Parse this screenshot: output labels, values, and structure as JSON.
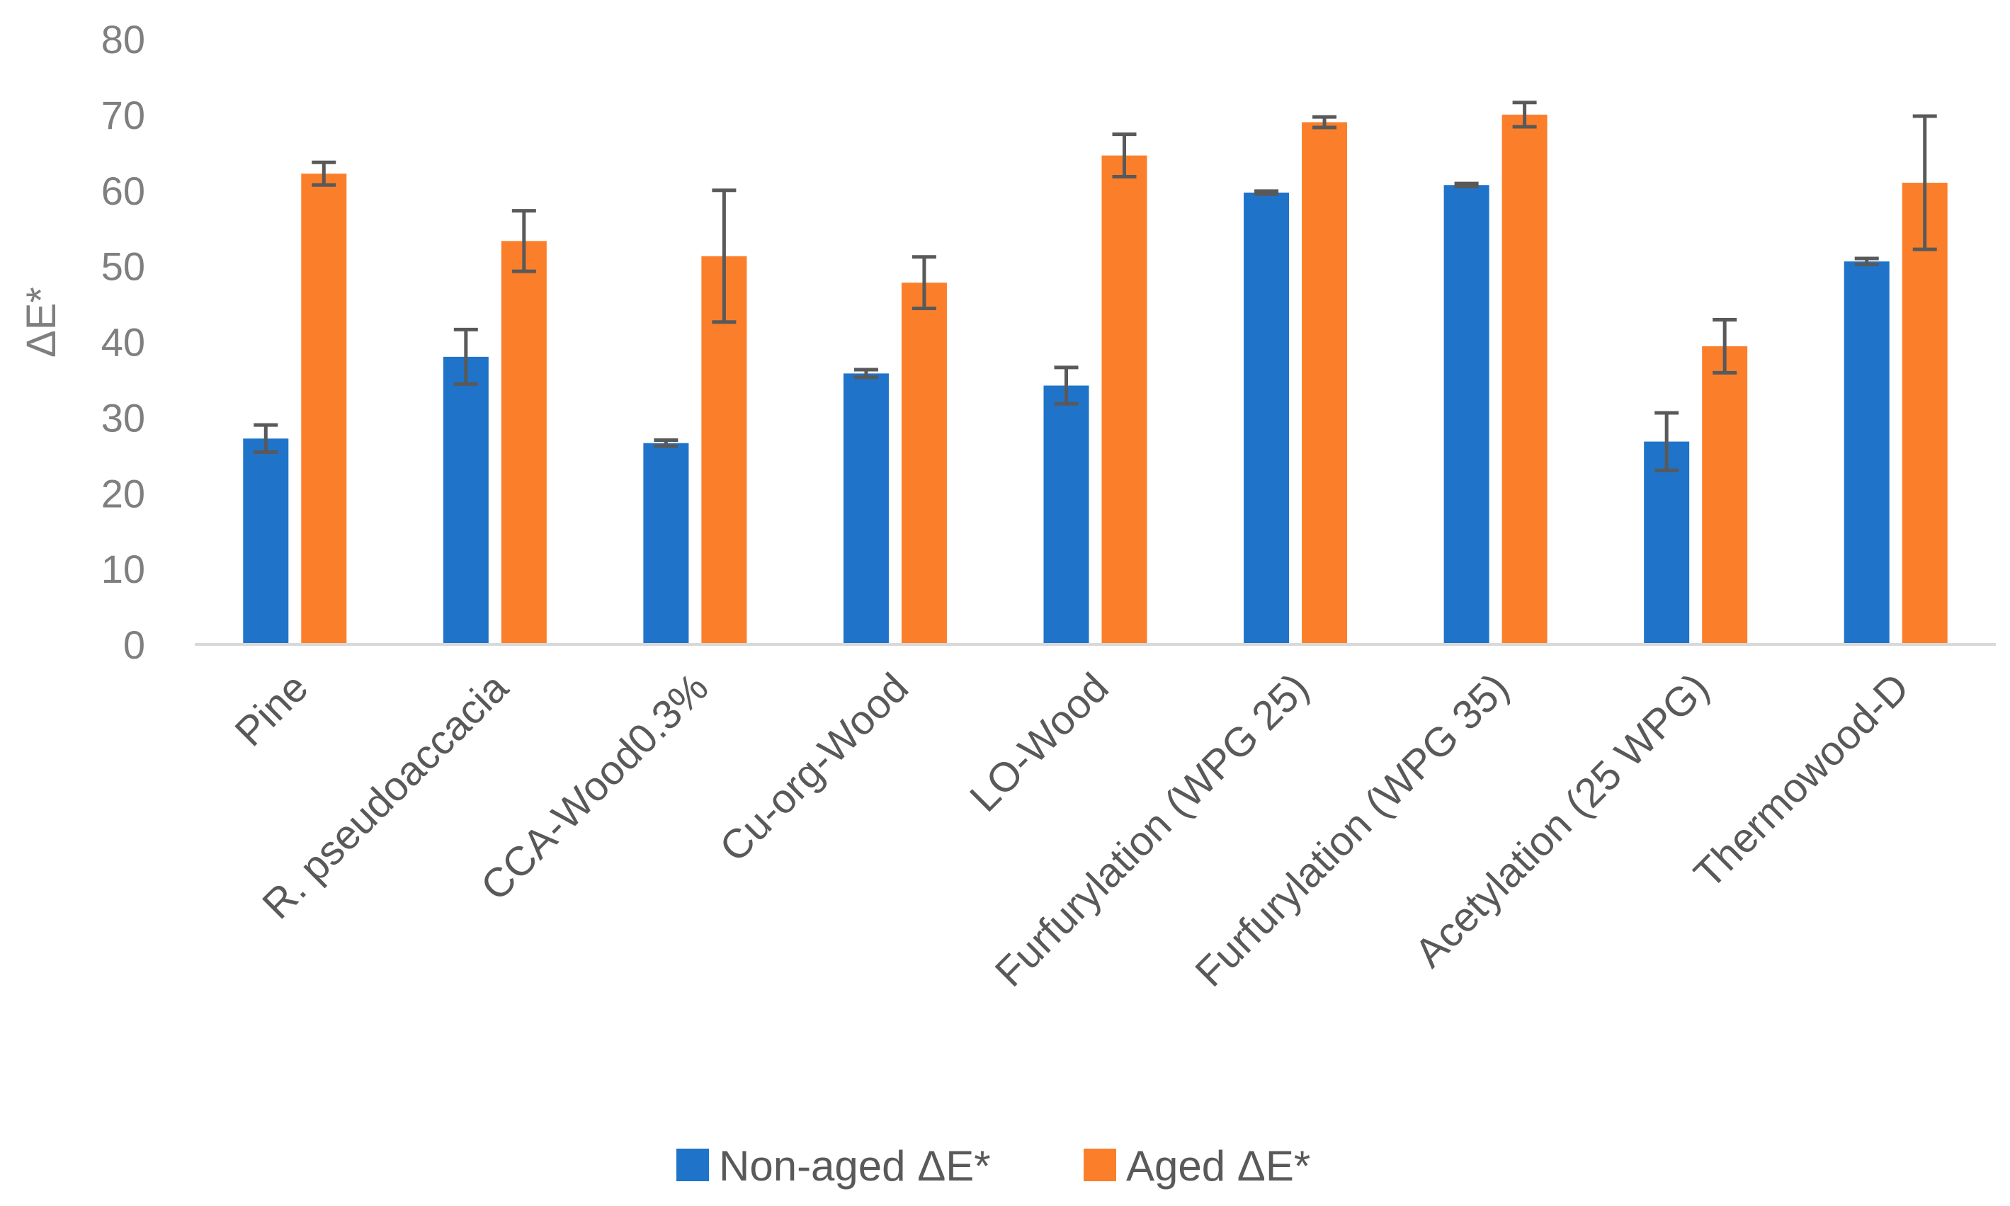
{
  "chart_data": {
    "type": "bar",
    "title": "",
    "xlabel": "",
    "ylabel": "ΔE*",
    "ylim": [
      0,
      80
    ],
    "yticks": [
      0,
      10,
      20,
      30,
      40,
      50,
      60,
      70,
      80
    ],
    "grid": false,
    "legend_position": "bottom",
    "categories": [
      "Pine",
      "R. pseudoaccacia",
      "CCA-Wood0.3%",
      "Cu-org-Wood",
      "LO-Wood",
      "Furfurylation (WPG 25)",
      "Furfurylation (WPG 35)",
      "Acetylation (25 WPG)",
      "Thermowood-D"
    ],
    "series": [
      {
        "name": "Non-aged ΔE*",
        "color": "#1f73c9",
        "values": [
          27.2,
          38.0,
          26.6,
          35.8,
          34.2,
          59.7,
          60.7,
          26.8,
          50.6
        ],
        "errors": [
          1.8,
          3.6,
          0.4,
          0.5,
          2.4,
          0.2,
          0.2,
          3.8,
          0.4
        ]
      },
      {
        "name": "Aged ΔE*",
        "color": "#fb7f2b",
        "values": [
          62.2,
          53.3,
          51.3,
          47.8,
          64.6,
          69.0,
          70.0,
          39.4,
          61.0
        ],
        "errors": [
          1.5,
          4.0,
          8.7,
          3.4,
          2.8,
          0.7,
          1.6,
          3.5,
          8.8
        ]
      }
    ],
    "error_bar_color": "#595959"
  }
}
